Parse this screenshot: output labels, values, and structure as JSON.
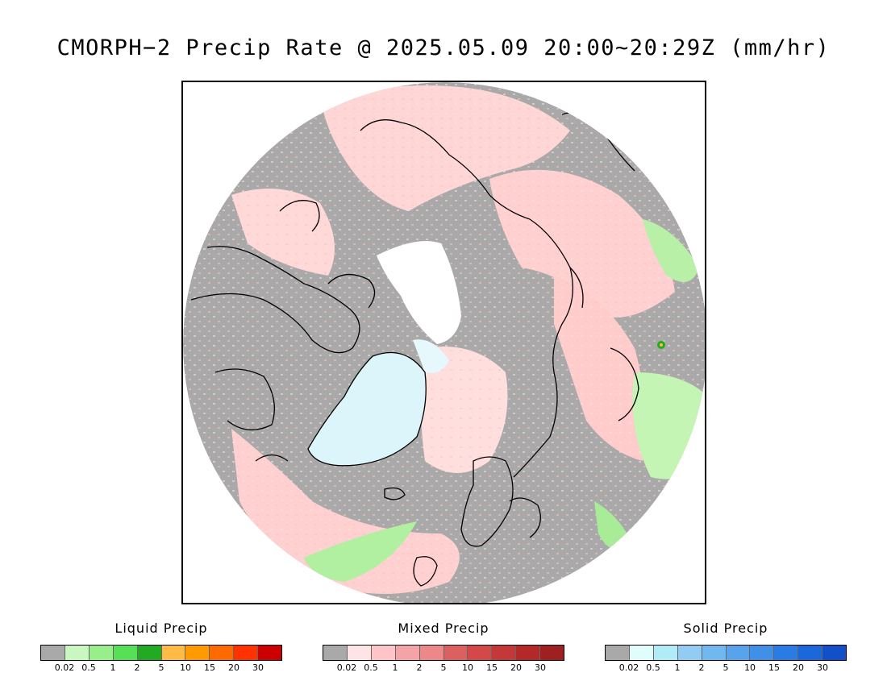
{
  "title": "CMORPH−2 Precip Rate @ 2025.05.09 20:00~20:29Z (mm/hr)",
  "map": {
    "projection": "polar-stereographic-north",
    "colors": {
      "no_data": "#a9a9a9",
      "background": "#ffffff",
      "ice_cap_white": "#ffffff",
      "coastline": "#000000"
    },
    "regions": [
      {
        "name": "greenland",
        "precip_type": "solid",
        "color": "#dcf5fa"
      },
      {
        "name": "north-atlantic",
        "precip_type": "mixed",
        "color": "#ffd0d0"
      },
      {
        "name": "siberia-east",
        "precip_type": "liquid",
        "color": "#c5f5b5"
      }
    ]
  },
  "legends": [
    {
      "name": "liquid",
      "title": "Liquid Precip",
      "colors": [
        "#a9a9a9",
        "#c8f8c0",
        "#98ee88",
        "#55e055",
        "#22aa22",
        "#ffbb44",
        "#ff9a00",
        "#ff6a00",
        "#ff3300",
        "#cc0000"
      ],
      "labels": [
        "0.02",
        "0.5",
        "1",
        "2",
        "5",
        "10",
        "15",
        "20",
        "30"
      ]
    },
    {
      "name": "mixed",
      "title": "Mixed Precip",
      "colors": [
        "#a9a9a9",
        "#ffe4e6",
        "#ffc4c8",
        "#f4a4a8",
        "#ec8888",
        "#dc6060",
        "#d44848",
        "#c43838",
        "#b42828",
        "#9e2020"
      ],
      "labels": [
        "0.02",
        "0.5",
        "1",
        "2",
        "5",
        "10",
        "15",
        "20",
        "30"
      ]
    },
    {
      "name": "solid",
      "title": "Solid Precip",
      "colors": [
        "#a9a9a9",
        "#e0fcfc",
        "#b0ecf8",
        "#90ccf4",
        "#70b8f0",
        "#58a4ec",
        "#4090e8",
        "#2a7ce4",
        "#1a68dc",
        "#1050c8"
      ],
      "labels": [
        "0.02",
        "0.5",
        "1",
        "2",
        "5",
        "10",
        "15",
        "20",
        "30"
      ]
    }
  ]
}
